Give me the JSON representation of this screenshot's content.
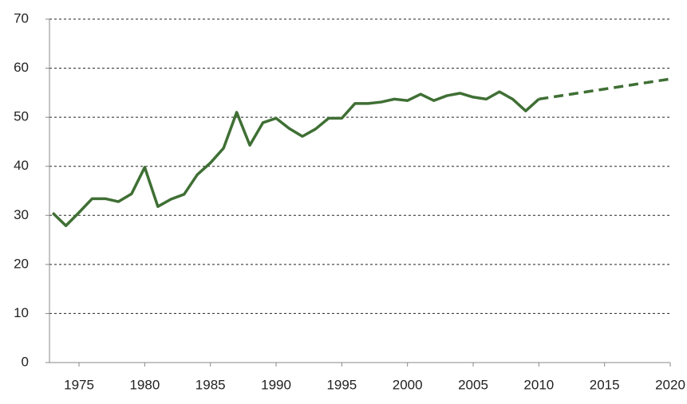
{
  "chart_data": {
    "type": "line",
    "xlim": [
      1972.75,
      2020
    ],
    "xticks": [
      1975,
      1980,
      1985,
      1990,
      1995,
      2000,
      2005,
      2010,
      2015,
      2020
    ],
    "ylim": [
      0,
      70
    ],
    "yticks": [
      0,
      10,
      20,
      30,
      40,
      50,
      60,
      70
    ],
    "grid": true,
    "series": [
      {
        "color": "#3f6f34",
        "dashed": false,
        "x": [
          1973,
          1974,
          1975,
          1976,
          1977,
          1978,
          1979,
          1980,
          1981,
          1982,
          1983,
          1984,
          1985,
          1986,
          1987,
          1988,
          1989,
          1990,
          1991,
          1992,
          1993,
          1994,
          1995,
          1996,
          1997,
          1998,
          1999,
          2000,
          2001,
          2002,
          2003,
          2004,
          2005,
          2006,
          2007,
          2008,
          2009,
          2010
        ],
        "values": [
          30.5,
          27.9,
          30.6,
          33.4,
          33.4,
          32.8,
          34.4,
          39.8,
          31.8,
          33.3,
          34.3,
          38.3,
          40.7,
          43.7,
          51.0,
          44.3,
          48.9,
          49.8,
          47.7,
          46.1,
          47.6,
          49.8,
          49.8,
          52.8,
          52.8,
          53.1,
          53.7,
          53.4,
          54.7,
          53.4,
          54.4,
          54.9,
          54.1,
          53.7,
          55.2,
          53.7,
          51.3,
          53.7
        ]
      },
      {
        "color": "#3f6f34",
        "dashed": true,
        "x": [
          2010,
          2020
        ],
        "values": [
          53.7,
          57.8
        ]
      }
    ]
  }
}
